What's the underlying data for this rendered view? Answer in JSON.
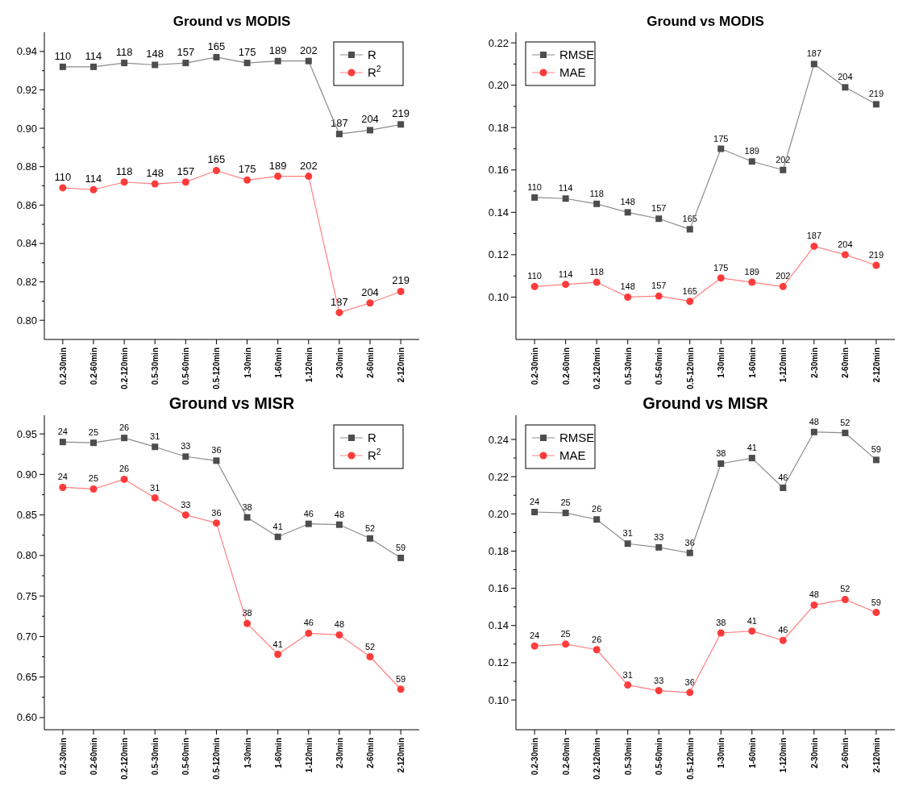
{
  "chart_data": [
    {
      "type": "line",
      "title": "Ground vs MODIS",
      "legend": "top right",
      "categories": [
        "0.2-30min",
        "0.2-60min",
        "0.2-120min",
        "0.5-30min",
        "0.5-60min",
        "0.5-120min",
        "1-30min",
        "1-60min",
        "1-120min",
        "2-30min",
        "2-60min",
        "2-120min"
      ],
      "ylim": [
        0.79,
        0.95
      ],
      "yticks": [
        {
          "value": 0.8,
          "label": "0.80"
        },
        {
          "value": 0.82,
          "label": "0.82"
        },
        {
          "value": 0.84,
          "label": "0.84"
        },
        {
          "value": 0.86,
          "label": "0.86"
        },
        {
          "value": 0.88,
          "label": "0.88"
        },
        {
          "value": 0.9,
          "label": "0.90"
        },
        {
          "value": 0.92,
          "label": "0.92"
        },
        {
          "value": 0.94,
          "label": "0.94"
        }
      ],
      "series": [
        {
          "name": "R",
          "color": "#4d4d4d",
          "marker": "square",
          "values": [
            0.932,
            0.932,
            0.934,
            0.933,
            0.934,
            0.937,
            0.934,
            0.935,
            0.935,
            0.897,
            0.899,
            0.902
          ]
        },
        {
          "name": "R$^{2}$",
          "color": "#ff3b3b",
          "marker": "circle",
          "values": [
            0.869,
            0.868,
            0.872,
            0.871,
            0.872,
            0.878,
            0.873,
            0.875,
            0.875,
            0.804,
            0.809,
            0.815
          ]
        }
      ],
      "annotations": [
        {
          "text": "110",
          "x": "0.2-30min",
          "y": 0.932
        },
        {
          "text": "114",
          "x": "0.2-60min",
          "y": 0.932
        },
        {
          "text": "118",
          "x": "0.2-120min",
          "y": 0.934
        },
        {
          "text": "148",
          "x": "0.5-30min",
          "y": 0.933
        },
        {
          "text": "157",
          "x": "0.5-60min",
          "y": 0.934
        },
        {
          "text": "165",
          "x": "0.5-120min",
          "y": 0.937
        },
        {
          "text": "175",
          "x": "1-30min",
          "y": 0.934
        },
        {
          "text": "189",
          "x": "1-60min",
          "y": 0.935
        },
        {
          "text": "202",
          "x": "1-120min",
          "y": 0.935
        },
        {
          "text": "187",
          "x": "2-30min",
          "y": 0.897
        },
        {
          "text": "204",
          "x": "2-60min",
          "y": 0.899
        },
        {
          "text": "219",
          "x": "2-120min",
          "y": 0.902
        },
        {
          "text": "110",
          "x": "0.2-30min",
          "y": 0.869
        },
        {
          "text": "114",
          "x": "0.2-60min",
          "y": 0.868
        },
        {
          "text": "118",
          "x": "0.2-120min",
          "y": 0.872
        },
        {
          "text": "148",
          "x": "0.5-30min",
          "y": 0.871
        },
        {
          "text": "157",
          "x": "0.5-60min",
          "y": 0.872
        },
        {
          "text": "165",
          "x": "0.5-120min",
          "y": 0.878
        },
        {
          "text": "175",
          "x": "1-30min",
          "y": 0.873
        },
        {
          "text": "189",
          "x": "1-60min",
          "y": 0.875
        },
        {
          "text": "202",
          "x": "1-120min",
          "y": 0.875
        },
        {
          "text": "187",
          "x": "2-30min",
          "y": 0.804
        },
        {
          "text": "204",
          "x": "2-60min",
          "y": 0.809
        },
        {
          "text": "219",
          "x": "2-120min",
          "y": 0.815
        }
      ]
    },
    {
      "type": "line",
      "title": "Ground vs MODIS",
      "legend": "top left",
      "categories": [
        "0.2-30min",
        "0.2-60min",
        "0.2-120min",
        "0.5-30min",
        "0.5-60min",
        "0.5-120min",
        "1-30min",
        "1-60min",
        "1-120min",
        "2-30min",
        "2-60min",
        "2-120min"
      ],
      "ylim": [
        0.08,
        0.225
      ],
      "yticks": [
        {
          "value": 0.1,
          "label": "0.10"
        },
        {
          "value": 0.12,
          "label": "0.12"
        },
        {
          "value": 0.14,
          "label": "0.14"
        },
        {
          "value": 0.16,
          "label": "0.16"
        },
        {
          "value": 0.18,
          "label": "0.18"
        },
        {
          "value": 0.2,
          "label": "0.20"
        },
        {
          "value": 0.22,
          "label": "0.22"
        }
      ],
      "series": [
        {
          "name": "RMSE",
          "color": "#4d4d4d",
          "marker": "square",
          "values": [
            0.147,
            0.1465,
            0.144,
            0.14,
            0.137,
            0.132,
            0.17,
            0.164,
            0.16,
            0.21,
            0.199,
            0.191
          ]
        },
        {
          "name": "MAE",
          "color": "#ff3b3b",
          "marker": "circle",
          "values": [
            0.105,
            0.106,
            0.107,
            0.1,
            0.1005,
            0.098,
            0.109,
            0.107,
            0.105,
            0.124,
            0.12,
            0.115
          ]
        }
      ],
      "annotations": [
        {
          "text": "110",
          "x": "0.2-30min",
          "y": 0.147
        },
        {
          "text": "114",
          "x": "0.2-60min",
          "y": 0.1465
        },
        {
          "text": "118",
          "x": "0.2-120min",
          "y": 0.144
        },
        {
          "text": "148",
          "x": "0.5-30min",
          "y": 0.14
        },
        {
          "text": "157",
          "x": "0.5-60min",
          "y": 0.137
        },
        {
          "text": "165",
          "x": "0.5-120min",
          "y": 0.132
        },
        {
          "text": "175",
          "x": "1-30min",
          "y": 0.17
        },
        {
          "text": "189",
          "x": "1-60min",
          "y": 0.164
        },
        {
          "text": "202",
          "x": "1-120min",
          "y": 0.16
        },
        {
          "text": "187",
          "x": "2-30min",
          "y": 0.21
        },
        {
          "text": "204",
          "x": "2-60min",
          "y": 0.199
        },
        {
          "text": "219",
          "x": "2-120min",
          "y": 0.191
        },
        {
          "text": "110",
          "x": "0.2-30min",
          "y": 0.105
        },
        {
          "text": "114",
          "x": "0.2-60min",
          "y": 0.106
        },
        {
          "text": "118",
          "x": "0.2-120min",
          "y": 0.107
        },
        {
          "text": "148",
          "x": "0.5-30min",
          "y": 0.1
        },
        {
          "text": "157",
          "x": "0.5-60min",
          "y": 0.1005
        },
        {
          "text": "165",
          "x": "0.5-120min",
          "y": 0.098
        },
        {
          "text": "175",
          "x": "1-30min",
          "y": 0.109
        },
        {
          "text": "189",
          "x": "1-60min",
          "y": 0.107
        },
        {
          "text": "202",
          "x": "1-120min",
          "y": 0.105
        },
        {
          "text": "187",
          "x": "2-30min",
          "y": 0.124
        },
        {
          "text": "204",
          "x": "2-60min",
          "y": 0.12
        },
        {
          "text": "219",
          "x": "2-120min",
          "y": 0.115
        }
      ]
    },
    {
      "type": "line",
      "title": "Ground vs MISR",
      "legend": "top right",
      "categories": [
        "0.2-30min",
        "0.2-60min",
        "0.2-120min",
        "0.5-30min",
        "0.5-60min",
        "0.5-120min",
        "1-30min",
        "1-60min",
        "1-120min",
        "2-30min",
        "2-60min",
        "2-120min"
      ],
      "ylim": [
        0.585,
        0.973
      ],
      "yticks": [
        {
          "value": 0.6,
          "label": "0.60"
        },
        {
          "value": 0.65,
          "label": "0.65"
        },
        {
          "value": 0.7,
          "label": "0.70"
        },
        {
          "value": 0.75,
          "label": "0.75"
        },
        {
          "value": 0.8,
          "label": "0.80"
        },
        {
          "value": 0.85,
          "label": "0.85"
        },
        {
          "value": 0.9,
          "label": "0.90"
        },
        {
          "value": 0.95,
          "label": "0.95"
        }
      ],
      "series": [
        {
          "name": "R",
          "color": "#4d4d4d",
          "marker": "square",
          "values": [
            0.94,
            0.939,
            0.945,
            0.934,
            0.922,
            0.917,
            0.847,
            0.823,
            0.839,
            0.838,
            0.821,
            0.797
          ]
        },
        {
          "name": "R$^{2}$",
          "color": "#ff3b3b",
          "marker": "circle",
          "values": [
            0.884,
            0.882,
            0.894,
            0.871,
            0.85,
            0.84,
            0.716,
            0.678,
            0.704,
            0.702,
            0.675,
            0.635
          ]
        }
      ],
      "annotations": [
        {
          "text": "24",
          "x": "0.2-30min",
          "y": 0.94
        },
        {
          "text": "25",
          "x": "0.2-60min",
          "y": 0.939
        },
        {
          "text": "26",
          "x": "0.2-120min",
          "y": 0.945
        },
        {
          "text": "31",
          "x": "0.5-30min",
          "y": 0.934
        },
        {
          "text": "33",
          "x": "0.5-60min",
          "y": 0.922
        },
        {
          "text": "36",
          "x": "0.5-120min",
          "y": 0.917
        },
        {
          "text": "38",
          "x": "1-30min",
          "y": 0.847
        },
        {
          "text": "41",
          "x": "1-60min",
          "y": 0.823
        },
        {
          "text": "46",
          "x": "1-120min",
          "y": 0.839
        },
        {
          "text": "48",
          "x": "2-30min",
          "y": 0.838
        },
        {
          "text": "52",
          "x": "2-60min",
          "y": 0.821
        },
        {
          "text": "59",
          "x": "2-120min",
          "y": 0.797
        },
        {
          "text": "24",
          "x": "0.2-30min",
          "y": 0.884
        },
        {
          "text": "25",
          "x": "0.2-60min",
          "y": 0.882
        },
        {
          "text": "26",
          "x": "0.2-120min",
          "y": 0.894
        },
        {
          "text": "31",
          "x": "0.5-30min",
          "y": 0.871
        },
        {
          "text": "33",
          "x": "0.5-60min",
          "y": 0.85
        },
        {
          "text": "36",
          "x": "0.5-120min",
          "y": 0.84
        },
        {
          "text": "38",
          "x": "1-30min",
          "y": 0.716
        },
        {
          "text": "41",
          "x": "1-60min",
          "y": 0.678
        },
        {
          "text": "46",
          "x": "1-120min",
          "y": 0.704
        },
        {
          "text": "48",
          "x": "2-30min",
          "y": 0.702
        },
        {
          "text": "52",
          "x": "2-60min",
          "y": 0.675
        },
        {
          "text": "59",
          "x": "2-120min",
          "y": 0.635
        }
      ]
    },
    {
      "type": "line",
      "title": "Ground vs MISR",
      "legend": "top left",
      "categories": [
        "0.2-30min",
        "0.2-60min",
        "0.2-120min",
        "0.5-30min",
        "0.5-60min",
        "0.5-120min",
        "1-30min",
        "1-60min",
        "1-120min",
        "2-30min",
        "2-60min",
        "2-120min"
      ],
      "ylim": [
        0.084,
        0.253
      ],
      "yticks": [
        {
          "value": 0.1,
          "label": "0.10"
        },
        {
          "value": 0.12,
          "label": "0.12"
        },
        {
          "value": 0.14,
          "label": "0.14"
        },
        {
          "value": 0.16,
          "label": "0.16"
        },
        {
          "value": 0.18,
          "label": "0.18"
        },
        {
          "value": 0.2,
          "label": "0.20"
        },
        {
          "value": 0.22,
          "label": "0.22"
        },
        {
          "value": 0.24,
          "label": "0.24"
        }
      ],
      "series": [
        {
          "name": "RMSE",
          "color": "#4d4d4d",
          "marker": "square",
          "values": [
            0.201,
            0.2005,
            0.197,
            0.184,
            0.182,
            0.179,
            0.227,
            0.23,
            0.214,
            0.244,
            0.2435,
            0.229
          ]
        },
        {
          "name": "MAE",
          "color": "#ff3b3b",
          "marker": "circle",
          "values": [
            0.129,
            0.13,
            0.127,
            0.108,
            0.105,
            0.104,
            0.136,
            0.137,
            0.132,
            0.151,
            0.154,
            0.147
          ]
        }
      ],
      "annotations": [
        {
          "text": "24",
          "x": "0.2-30min",
          "y": 0.201
        },
        {
          "text": "25",
          "x": "0.2-60min",
          "y": 0.2005
        },
        {
          "text": "26",
          "x": "0.2-120min",
          "y": 0.197
        },
        {
          "text": "31",
          "x": "0.5-30min",
          "y": 0.184
        },
        {
          "text": "33",
          "x": "0.5-60min",
          "y": 0.182
        },
        {
          "text": "36",
          "x": "0.5-120min",
          "y": 0.179
        },
        {
          "text": "38",
          "x": "1-30min",
          "y": 0.227
        },
        {
          "text": "41",
          "x": "1-60min",
          "y": 0.23
        },
        {
          "text": "46",
          "x": "1-120min",
          "y": 0.214
        },
        {
          "text": "48",
          "x": "2-30min",
          "y": 0.244
        },
        {
          "text": "52",
          "x": "2-60min",
          "y": 0.2435
        },
        {
          "text": "59",
          "x": "2-120min",
          "y": 0.229
        },
        {
          "text": "24",
          "x": "0.2-30min",
          "y": 0.129
        },
        {
          "text": "25",
          "x": "0.2-60min",
          "y": 0.13
        },
        {
          "text": "26",
          "x": "0.2-120min",
          "y": 0.127
        },
        {
          "text": "31",
          "x": "0.5-30min",
          "y": 0.108
        },
        {
          "text": "33",
          "x": "0.5-60min",
          "y": 0.105
        },
        {
          "text": "36",
          "x": "0.5-120min",
          "y": 0.104
        },
        {
          "text": "38",
          "x": "1-30min",
          "y": 0.136
        },
        {
          "text": "41",
          "x": "1-60min",
          "y": 0.137
        },
        {
          "text": "46",
          "x": "1-120min",
          "y": 0.132
        },
        {
          "text": "48",
          "x": "2-30min",
          "y": 0.151
        },
        {
          "text": "52",
          "x": "2-60min",
          "y": 0.154
        },
        {
          "text": "59",
          "x": "2-120min",
          "y": 0.147
        }
      ]
    }
  ]
}
